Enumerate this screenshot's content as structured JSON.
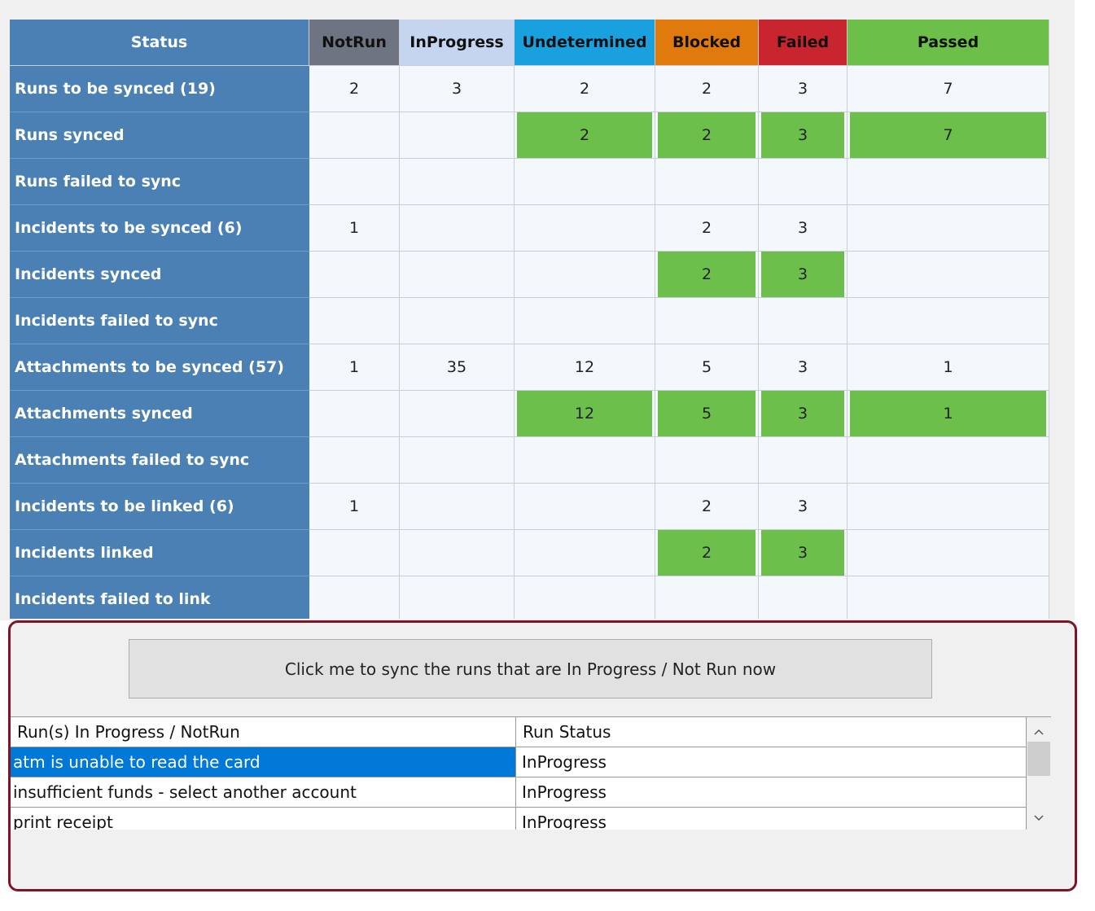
{
  "status_table": {
    "label_color": "#4a80b4",
    "highlight_color": "#6cbf4b",
    "headers": [
      {
        "text": "Status",
        "color": "#4a80b4",
        "text_color": "#ffffff"
      },
      {
        "text": "NotRun",
        "color": "#6e7482",
        "text_color": "#111111"
      },
      {
        "text": "InProgress",
        "color": "#c6d5ef",
        "text_color": "#111111"
      },
      {
        "text": "Undetermined",
        "color": "#18a0df",
        "text_color": "#111111"
      },
      {
        "text": "Blocked",
        "color": "#e07a0c",
        "text_color": "#111111"
      },
      {
        "text": "Failed",
        "color": "#c9252f",
        "text_color": "#111111"
      },
      {
        "text": "Passed",
        "color": "#6cc04a",
        "text_color": "#111111"
      }
    ],
    "rows": [
      {
        "label": "Runs to be synced (19)",
        "highlight": false,
        "cells": [
          2,
          3,
          2,
          2,
          3,
          7
        ]
      },
      {
        "label": "Runs synced",
        "highlight": true,
        "cells": [
          null,
          null,
          2,
          2,
          3,
          7
        ]
      },
      {
        "label": "Runs failed to sync",
        "highlight": false,
        "cells": [
          null,
          null,
          null,
          null,
          null,
          null
        ]
      },
      {
        "label": "Incidents to be synced (6)",
        "highlight": false,
        "cells": [
          1,
          null,
          null,
          2,
          3,
          null
        ]
      },
      {
        "label": "Incidents synced",
        "highlight": true,
        "cells": [
          null,
          null,
          null,
          2,
          3,
          null
        ]
      },
      {
        "label": "Incidents failed to sync",
        "highlight": false,
        "cells": [
          null,
          null,
          null,
          null,
          null,
          null
        ]
      },
      {
        "label": "Attachments to be synced (57)",
        "highlight": false,
        "cells": [
          1,
          35,
          12,
          5,
          3,
          1
        ]
      },
      {
        "label": "Attachments synced",
        "highlight": true,
        "cells": [
          null,
          null,
          12,
          5,
          3,
          1
        ]
      },
      {
        "label": "Attachments failed to sync",
        "highlight": false,
        "cells": [
          null,
          null,
          null,
          null,
          null,
          null
        ]
      },
      {
        "label": "Incidents to be linked (6)",
        "highlight": false,
        "cells": [
          1,
          null,
          null,
          2,
          3,
          null
        ]
      },
      {
        "label": "Incidents linked",
        "highlight": true,
        "cells": [
          null,
          null,
          null,
          2,
          3,
          null
        ]
      },
      {
        "label": "Incidents failed to link",
        "highlight": false,
        "cells": [
          null,
          null,
          null,
          null,
          null,
          null
        ]
      }
    ]
  },
  "sync_panel": {
    "button": "Click me to sync the runs that are In Progress / Not Run now",
    "list": {
      "columns": [
        "Run(s) In Progress / NotRun",
        "Run Status"
      ],
      "selected_row": 0,
      "rows": [
        [
          "atm is unable to read the card",
          "InProgress"
        ],
        [
          "insufficient funds - select another account",
          "InProgress"
        ],
        [
          "print receipt",
          "InProgress"
        ]
      ]
    }
  }
}
